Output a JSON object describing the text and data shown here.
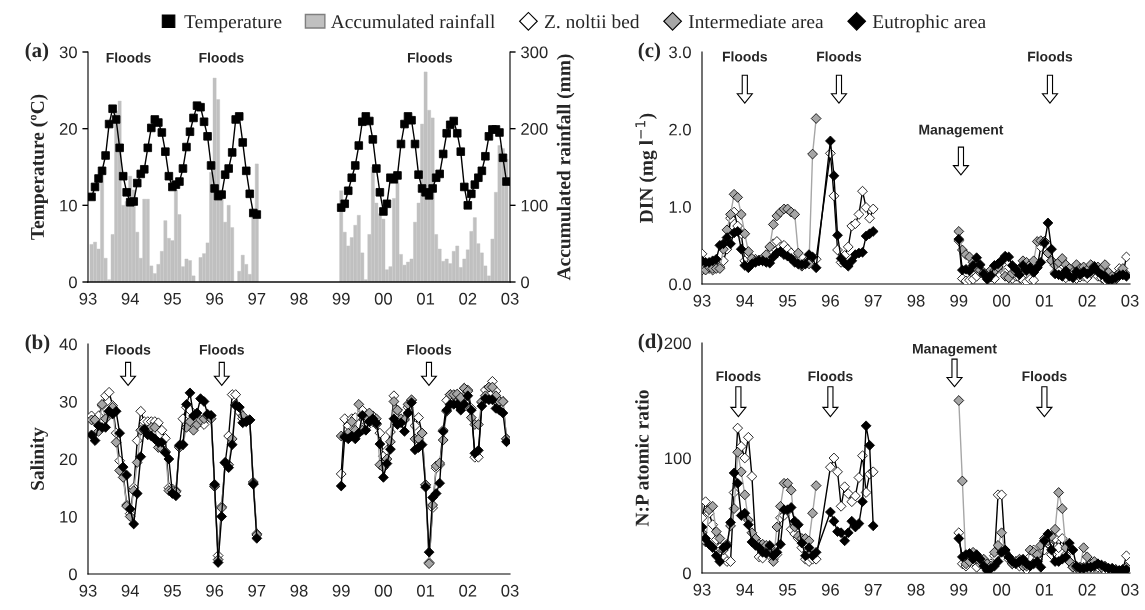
{
  "chart_data": [
    {
      "type": "line",
      "title": "(a)",
      "ylabel": "Temperature (ºC)",
      "y2label": "Accumulated rainfall (mm)",
      "legend": "top",
      "xlim": [
        "1993-01",
        "2003-01"
      ],
      "ylim": [
        0,
        30
      ],
      "y2lim": [
        0,
        300
      ],
      "xticks": [
        {
          "value": "1993-01",
          "label": "93"
        },
        {
          "value": "1994-01",
          "label": "94"
        },
        {
          "value": "1995-01",
          "label": "95"
        },
        {
          "value": "1996-01",
          "label": "96"
        },
        {
          "value": "1997-01",
          "label": "97"
        },
        {
          "value": "1998-01",
          "label": "98"
        },
        {
          "value": "1999-01",
          "label": "99"
        },
        {
          "value": "2000-01",
          "label": "00"
        },
        {
          "value": "2001-01",
          "label": "01"
        },
        {
          "value": "2002-01",
          "label": "02"
        },
        {
          "value": "2003-01",
          "label": "03"
        }
      ],
      "yticks": [
        0,
        10,
        20,
        30
      ],
      "y2ticks": [
        0,
        100,
        200,
        300
      ],
      "x": [
        "1993-02",
        "1993-03",
        "1993-04",
        "1993-05",
        "1993-06",
        "1993-07",
        "1993-08",
        "1993-09",
        "1993-10",
        "1993-11",
        "1993-12",
        "1994-01",
        "1994-02",
        "1994-03",
        "1994-04",
        "1994-05",
        "1994-06",
        "1994-07",
        "1994-08",
        "1994-09",
        "1994-10",
        "1994-11",
        "1994-12",
        "1995-01",
        "1995-02",
        "1995-03",
        "1995-04",
        "1995-05",
        "1995-06",
        "1995-07",
        "1995-08",
        "1995-09",
        "1995-10",
        "1995-11",
        "1995-12",
        "1996-01",
        "1996-02",
        "1996-03",
        "1996-04",
        "1996-05",
        "1996-06",
        "1996-07",
        "1996-08",
        "1996-09",
        "1996-10",
        "1996-11",
        "1996-12",
        "1997-01",
        "1998-01",
        "1999-01",
        "1999-02",
        "1999-03",
        "1999-04",
        "1999-05",
        "1999-06",
        "1999-07",
        "1999-08",
        "1999-09",
        "1999-10",
        "1999-11",
        "1999-12",
        "2000-01",
        "2000-02",
        "2000-03",
        "2000-04",
        "2000-05",
        "2000-06",
        "2000-07",
        "2000-08",
        "2000-09",
        "2000-10",
        "2000-11",
        "2000-12",
        "2001-01",
        "2001-02",
        "2001-03",
        "2001-04",
        "2001-05",
        "2001-06",
        "2001-07",
        "2001-08",
        "2001-09",
        "2001-10",
        "2001-11",
        "2001-12",
        "2002-01",
        "2002-02",
        "2002-03",
        "2002-04",
        "2002-05",
        "2002-06",
        "2002-07",
        "2002-08",
        "2002-09",
        "2002-10",
        "2002-11",
        "2002-12"
      ],
      "annotations": [
        "Floods",
        "Floods",
        "Floods"
      ],
      "series": [
        {
          "name": "Accumulated rainfall",
          "type": "bar",
          "axis": "y2",
          "color": "#c0c0c0",
          "values": [
            49,
            52,
            43,
            141,
            31,
            3,
            62,
            223,
            236,
            100,
            105,
            138,
            120,
            65,
            31,
            108,
            108,
            21,
            11,
            23,
            40,
            80,
            57,
            54,
            120,
            88,
            20,
            30,
            28,
            8,
            0,
            32,
            37,
            51,
            143,
            266,
            238,
            120,
            78,
            100,
            71,
            0,
            14,
            35,
            23,
            10,
            84,
            154,
            null,
            119,
            65,
            47,
            58,
            74,
            87,
            38,
            3,
            62,
            150,
            103,
            89,
            82,
            16,
            20,
            109,
            129,
            36,
            22,
            26,
            30,
            78,
            103,
            206,
            274,
            224,
            214,
            62,
            43,
            27,
            30,
            24,
            40,
            47,
            19,
            30,
            42,
            66,
            84,
            50,
            38,
            21,
            8,
            56,
            117,
            178,
            174,
            160
          ]
        },
        {
          "name": "Temperature",
          "marker": "square",
          "color": "#000000",
          "values": [
            11.1,
            12.4,
            13.5,
            14.5,
            16.5,
            20.6,
            22.6,
            21.2,
            17.5,
            13.8,
            11.7,
            10.4,
            10.5,
            12.9,
            14.1,
            14.7,
            17.5,
            20.1,
            21.2,
            20.8,
            19.5,
            17.0,
            13.8,
            12.4,
            12.7,
            13.1,
            14.8,
            17.6,
            19.6,
            21.4,
            23.0,
            22.8,
            20.9,
            19.0,
            15.2,
            12.2,
            11.2,
            11.4,
            14.0,
            14.8,
            16.9,
            21.2,
            21.6,
            18.2,
            14.5,
            11.5,
            9.0,
            8.8,
            null,
            9.7,
            10.2,
            11.9,
            13.6,
            15.2,
            17.8,
            20.9,
            21.6,
            21.0,
            18.6,
            14.8,
            11.7,
            9.2,
            10.2,
            13.6,
            13.4,
            13.9,
            18.0,
            20.6,
            21.6,
            21.1,
            18.0,
            14.0,
            12.2,
            11.7,
            11.3,
            12.2,
            13.6,
            14.1,
            16.7,
            19.4,
            20.5,
            21.0,
            19.4,
            17.0,
            12.4,
            10.0,
            11.5,
            12.7,
            13.6,
            14.5,
            16.4,
            19.0,
            19.9,
            19.9,
            19.5,
            16.2,
            13.1
          ]
        }
      ]
    },
    {
      "type": "line",
      "title": "(b)",
      "ylabel": "Salinity",
      "legend": "top",
      "xlim": [
        "1993-01",
        "2003-01"
      ],
      "ylim": [
        0,
        40
      ],
      "xticks": [
        {
          "value": "1993-01",
          "label": "93"
        },
        {
          "value": "1994-01",
          "label": "94"
        },
        {
          "value": "1995-01",
          "label": "95"
        },
        {
          "value": "1996-01",
          "label": "96"
        },
        {
          "value": "1997-01",
          "label": "97"
        },
        {
          "value": "1998-01",
          "label": "98"
        },
        {
          "value": "1999-01",
          "label": "99"
        },
        {
          "value": "2000-01",
          "label": "00"
        },
        {
          "value": "2001-01",
          "label": "01"
        },
        {
          "value": "2002-01",
          "label": "02"
        },
        {
          "value": "2003-01",
          "label": "03"
        }
      ],
      "yticks": [
        0,
        10,
        20,
        30,
        40
      ],
      "x": [
        "1993-02",
        "1993-03",
        "1993-04",
        "1993-05",
        "1993-06",
        "1993-07",
        "1993-08",
        "1993-09",
        "1993-10",
        "1993-11",
        "1993-12",
        "1994-01",
        "1994-02",
        "1994-03",
        "1994-04",
        "1994-05",
        "1994-06",
        "1994-07",
        "1994-08",
        "1994-09",
        "1994-10",
        "1994-11",
        "1994-12",
        "1995-01",
        "1995-02",
        "1995-03",
        "1995-04",
        "1995-05",
        "1995-06",
        "1995-07",
        "1995-08",
        "1995-09",
        "1995-10",
        "1995-11",
        "1995-12",
        "1996-01",
        "1996-02",
        "1996-03",
        "1996-04",
        "1996-05",
        "1996-06",
        "1996-07",
        "1996-08",
        "1996-09",
        "1996-10",
        "1996-11",
        "1996-12",
        "1997-01",
        "1998-01",
        "1999-01",
        "1999-02",
        "1999-03",
        "1999-04",
        "1999-05",
        "1999-06",
        "1999-07",
        "1999-08",
        "1999-09",
        "1999-10",
        "1999-11",
        "1999-12",
        "2000-01",
        "2000-02",
        "2000-03",
        "2000-04",
        "2000-05",
        "2000-06",
        "2000-07",
        "2000-08",
        "2000-09",
        "2000-10",
        "2000-11",
        "2000-12",
        "2001-01",
        "2001-02",
        "2001-03",
        "2001-04",
        "2001-05",
        "2001-06",
        "2001-07",
        "2001-08",
        "2001-09",
        "2001-10",
        "2001-11",
        "2001-12",
        "2002-01",
        "2002-02",
        "2002-03",
        "2002-04",
        "2002-05",
        "2002-06",
        "2002-07",
        "2002-08",
        "2002-09",
        "2002-10",
        "2002-11",
        "2002-12"
      ],
      "annotations": [
        "Floods",
        "Floods",
        "Floods"
      ],
      "series": [
        {
          "name": "Z. noltii bed",
          "marker": "diamond",
          "color": "#ffffff",
          "values": [
            27.5,
            26.5,
            27.5,
            29.3,
            31.0,
            31.6,
            29.3,
            24.5,
            19.7,
            17.5,
            12.0,
            10.5,
            15.0,
            23.2,
            28.3,
            26.5,
            26.5,
            26.5,
            26.5,
            26.3,
            25.0,
            23.6,
            15.0,
            14.8,
            14.5,
            22.2,
            27.0,
            29.0,
            28.5,
            27.0,
            26.5,
            26.5,
            26.0,
            27.2,
            27.5,
            15.2,
            3.2,
            11.7,
            19.3,
            24.0,
            31.2,
            31.2,
            28.2,
            27.0,
            26.8,
            26.8,
            16.0,
            7.0,
            null,
            17.4,
            27.0,
            25.8,
            27.0,
            27.2,
            26.0,
            28.5,
            25.5,
            26.5,
            27.5,
            26.0,
            24.5,
            20.5,
            21.5,
            24.7,
            31.0,
            28.5,
            26.5,
            27.0,
            29.0,
            30.2,
            25.8,
            27.2,
            24.5,
            15.5,
            2.0,
            11.5,
            18.4,
            19.0,
            25.0,
            30.2,
            31.2,
            31.0,
            31.2,
            30.5,
            32.3,
            32.0,
            28.8,
            20.3,
            20.3,
            29.8,
            32.0,
            32.5,
            33.5,
            31.8,
            30.0,
            30.0,
            23.5
          ]
        },
        {
          "name": "Intermediate area",
          "marker": "diamond",
          "color": "#a6a6a6",
          "values": [
            26.8,
            26.8,
            24.8,
            29.5,
            27.0,
            28.3,
            29.0,
            22.9,
            18.0,
            16.8,
            11.8,
            10.0,
            14.5,
            19.4,
            25.0,
            25.0,
            25.0,
            25.5,
            25.5,
            22.0,
            21.8,
            21.3,
            14.5,
            14.5,
            14.3,
            22.0,
            22.5,
            25.5,
            26.5,
            25.0,
            26.0,
            26.8,
            27.0,
            27.5,
            27.0,
            15.3,
            2.5,
            11.5,
            19.4,
            19.0,
            23.5,
            29.5,
            29.0,
            27.5,
            26.5,
            26.8,
            15.8,
            6.8,
            null,
            24.0,
            24.0,
            24.5,
            26.5,
            25.0,
            29.5,
            25.0,
            27.5,
            28.0,
            26.5,
            27.0,
            19.0,
            18.5,
            20.0,
            23.0,
            30.0,
            28.5,
            27.0,
            26.8,
            29.5,
            30.3,
            23.5,
            23.5,
            24.5,
            15.5,
            1.8,
            12.0,
            18.8,
            19.3,
            23.3,
            28.3,
            31.2,
            31.2,
            31.3,
            30.7,
            32.3,
            31.8,
            27.2,
            26.0,
            26.0,
            30.0,
            31.0,
            32.5,
            32.5,
            31.0,
            30.0,
            30.0,
            23.5
          ]
        },
        {
          "name": "Eutrophic area",
          "marker": "diamond",
          "color": "#000000",
          "values": [
            24.2,
            23.2,
            25.8,
            25.5,
            25.5,
            28.3,
            27.8,
            28.3,
            24.5,
            18.6,
            17.2,
            11.3,
            8.7,
            14.0,
            20.4,
            25.2,
            24.2,
            24.0,
            23.5,
            22.9,
            22.9,
            21.1,
            20.0,
            14.0,
            13.6,
            22.4,
            22.5,
            29.5,
            31.5,
            27.5,
            28.0,
            30.5,
            30.0,
            27.8,
            27.6,
            15.6,
            2.0,
            10.0,
            19.4,
            18.5,
            22.5,
            29.3,
            29.0,
            26.3,
            26.5,
            26.8,
            15.6,
            6.2,
            null,
            15.3,
            23.8,
            23.5,
            24.0,
            23.5,
            24.5,
            27.6,
            25.0,
            26.5,
            27.0,
            26.2,
            22.6,
            16.8,
            19.2,
            21.7,
            27.0,
            26.0,
            26.3,
            24.8,
            28.0,
            29.8,
            21.6,
            22.0,
            22.5,
            15.1,
            3.8,
            13.3,
            14.0,
            15.8,
            24.8,
            28.5,
            29.5,
            29.5,
            29.5,
            28.5,
            29.5,
            31.0,
            28.5,
            21.0,
            21.5,
            29.2,
            30.5,
            30.3,
            30.3,
            28.8,
            28.5,
            28.0,
            23.0
          ]
        }
      ]
    },
    {
      "type": "line",
      "title": "(c)",
      "ylabel": "DIN (mg l$^{−1}$)",
      "legend": "top",
      "xlim": [
        "1993-01",
        "2003-01"
      ],
      "ylim": [
        0,
        3
      ],
      "xticks": [
        {
          "value": "1993-01",
          "label": "93"
        },
        {
          "value": "1994-01",
          "label": "94"
        },
        {
          "value": "1995-01",
          "label": "95"
        },
        {
          "value": "1996-01",
          "label": "96"
        },
        {
          "value": "1997-01",
          "label": "97"
        },
        {
          "value": "1998-01",
          "label": "98"
        },
        {
          "value": "1999-01",
          "label": "99"
        },
        {
          "value": "2000-01",
          "label": "00"
        },
        {
          "value": "2001-01",
          "label": "01"
        },
        {
          "value": "2002-01",
          "label": "02"
        },
        {
          "value": "2003-01",
          "label": "03"
        }
      ],
      "yticks": [
        {
          "value": 0,
          "label": "0.0"
        },
        {
          "value": 1,
          "label": "1.0"
        },
        {
          "value": 2,
          "label": "2.0"
        },
        {
          "value": 3,
          "label": "3.0"
        }
      ],
      "x": [
        "1993-01",
        "1993-02",
        "1993-03",
        "1993-04",
        "1993-05",
        "1993-06",
        "1993-07",
        "1993-08",
        "1993-09",
        "1993-10",
        "1993-11",
        "1993-12",
        "1994-01",
        "1994-02",
        "1994-03",
        "1994-04",
        "1994-05",
        "1994-06",
        "1994-07",
        "1994-08",
        "1994-09",
        "1994-10",
        "1994-11",
        "1994-12",
        "1995-01",
        "1995-02",
        "1995-03",
        "1995-04",
        "1995-05",
        "1995-06",
        "1995-07",
        "1995-08",
        "1995-09",
        "1996-01",
        "1996-02",
        "1996-03",
        "1996-04",
        "1996-05",
        "1996-06",
        "1996-07",
        "1996-08",
        "1996-09",
        "1996-10",
        "1996-11",
        "1996-12",
        "1997-01",
        "1998-01",
        "1999-01",
        "1999-02",
        "1999-03",
        "1999-04",
        "1999-05",
        "1999-06",
        "1999-07",
        "1999-08",
        "1999-09",
        "1999-10",
        "1999-11",
        "1999-12",
        "2000-01",
        "2000-02",
        "2000-03",
        "2000-04",
        "2000-05",
        "2000-06",
        "2000-07",
        "2000-08",
        "2000-09",
        "2000-10",
        "2000-11",
        "2000-12",
        "2001-01",
        "2001-02",
        "2001-03",
        "2001-04",
        "2001-05",
        "2001-06",
        "2001-07",
        "2001-08",
        "2001-09",
        "2001-10",
        "2001-11",
        "2001-12",
        "2002-01",
        "2002-02",
        "2002-03",
        "2002-04",
        "2002-05",
        "2002-06",
        "2002-07",
        "2002-08",
        "2002-09",
        "2002-10",
        "2002-11",
        "2002-12"
      ],
      "annotations": [
        "Floods",
        "Floods",
        "Management",
        "Floods"
      ],
      "series": [
        {
          "name": "Z. noltii bed",
          "marker": "diamond",
          "color": "#ffffff",
          "values": [
            0.39,
            0.25,
            0.2,
            0.18,
            0.22,
            0.22,
            0.3,
            0.45,
            0.85,
            0.93,
            0.75,
            0.65,
            0.3,
            0.24,
            0.3,
            0.32,
            0.3,
            0.3,
            0.3,
            0.4,
            0.52,
            0.55,
            0.48,
            0.5,
            0.45,
            0.4,
            0.3,
            0.26,
            0.25,
            0.26,
            0.3,
            0.3,
            0.32,
            1.69,
            1.14,
            0.44,
            0.28,
            0.37,
            0.48,
            0.75,
            0.78,
            0.9,
            1.2,
            0.99,
            0.85,
            0.97,
            null,
            0.56,
            0.07,
            0.04,
            0.05,
            0.06,
            0.1,
            0.15,
            0.12,
            0.08,
            0.09,
            0.07,
            0.2,
            0.25,
            0.14,
            0.08,
            0.07,
            0.1,
            0.08,
            0.05,
            0.03,
            0.06,
            0.05,
            0.22,
            0.48,
            0.55,
            0.4,
            0.3,
            0.15,
            0.2,
            0.25,
            0.08,
            0.12,
            0.1,
            0.07,
            0.09,
            0.1,
            0.08,
            0.14,
            0.2,
            0.1,
            0.08,
            0.05,
            0.04,
            0.06,
            0.1,
            0.2,
            0.12,
            0.35
          ]
        },
        {
          "name": "Intermediate area",
          "marker": "diamond",
          "color": "#a6a6a6",
          "values": [
            0.18,
            0.18,
            0.22,
            0.2,
            0.2,
            0.2,
            0.45,
            0.7,
            0.9,
            1.16,
            1.12,
            0.9,
            0.65,
            0.42,
            0.33,
            0.3,
            0.31,
            0.33,
            0.38,
            0.48,
            0.77,
            0.88,
            0.93,
            0.97,
            0.97,
            0.93,
            0.9,
            0.4,
            0.23,
            0.28,
            0.26,
            1.68,
            2.14,
            null,
            null,
            null,
            null,
            null,
            null,
            null,
            null,
            null,
            null,
            null,
            null,
            null,
            null,
            0.68,
            0.44,
            0.38,
            0.35,
            0.28,
            0.2,
            0.18,
            0.15,
            0.1,
            0.18,
            0.17,
            0.22,
            0.3,
            0.1,
            0.08,
            0.14,
            0.16,
            0.2,
            0.3,
            0.28,
            0.25,
            0.3,
            0.55,
            0.56,
            0.55,
            0.4,
            0.3,
            0.24,
            0.28,
            0.33,
            0.25,
            0.2,
            0.15,
            0.25,
            0.2,
            0.22,
            0.18,
            0.25,
            0.23,
            0.22,
            0.2,
            0.25,
            0.15,
            0.1,
            0.06,
            0.14,
            0.2,
            0.12
          ]
        },
        {
          "name": "Eutrophic area",
          "marker": "diamond",
          "color": "#000000",
          "values": [
            0.3,
            0.28,
            0.28,
            0.3,
            0.32,
            0.5,
            0.52,
            0.6,
            0.52,
            0.66,
            0.68,
            0.45,
            0.24,
            0.21,
            0.26,
            0.28,
            0.3,
            0.3,
            0.28,
            0.27,
            0.35,
            0.4,
            0.42,
            0.38,
            0.36,
            0.33,
            0.28,
            0.26,
            0.25,
            0.26,
            0.38,
            0.35,
            0.21,
            1.85,
            1.4,
            0.63,
            0.33,
            0.27,
            0.23,
            0.3,
            0.38,
            0.4,
            0.41,
            0.62,
            0.65,
            0.68,
            null,
            0.58,
            0.18,
            0.19,
            0.17,
            0.24,
            0.34,
            0.25,
            0.13,
            0.06,
            0.11,
            0.24,
            0.26,
            0.3,
            0.36,
            0.35,
            0.24,
            0.19,
            0.12,
            0.24,
            0.17,
            0.21,
            0.15,
            0.21,
            0.28,
            0.53,
            0.79,
            0.45,
            0.13,
            0.12,
            0.1,
            0.17,
            0.1,
            0.08,
            0.16,
            0.12,
            0.16,
            0.13,
            0.16,
            0.22,
            0.16,
            0.12,
            0.1,
            0.05,
            0.06,
            0.08,
            0.11,
            0.12,
            0.1
          ]
        }
      ]
    },
    {
      "type": "line",
      "title": "(d)",
      "ylabel": "N:P atomic ratio",
      "legend": "top",
      "xlim": [
        "1993-01",
        "2003-01"
      ],
      "ylim": [
        0,
        200
      ],
      "xticks": [
        {
          "value": "1993-01",
          "label": "93"
        },
        {
          "value": "1994-01",
          "label": "94"
        },
        {
          "value": "1995-01",
          "label": "95"
        },
        {
          "value": "1996-01",
          "label": "96"
        },
        {
          "value": "1997-01",
          "label": "97"
        },
        {
          "value": "1998-01",
          "label": "98"
        },
        {
          "value": "1999-01",
          "label": "99"
        },
        {
          "value": "2000-01",
          "label": "00"
        },
        {
          "value": "2001-01",
          "label": "01"
        },
        {
          "value": "2002-01",
          "label": "02"
        },
        {
          "value": "2003-01",
          "label": "03"
        }
      ],
      "yticks": [
        0,
        100,
        200
      ],
      "x": [
        "1993-01",
        "1993-02",
        "1993-03",
        "1993-04",
        "1993-05",
        "1993-06",
        "1993-07",
        "1993-08",
        "1993-09",
        "1993-10",
        "1993-11",
        "1993-12",
        "1994-01",
        "1994-02",
        "1994-03",
        "1994-04",
        "1994-05",
        "1994-06",
        "1994-07",
        "1994-08",
        "1994-09",
        "1994-10",
        "1994-11",
        "1994-12",
        "1995-01",
        "1995-02",
        "1995-03",
        "1995-04",
        "1995-05",
        "1995-06",
        "1995-07",
        "1995-08",
        "1995-09",
        "1996-01",
        "1996-02",
        "1996-03",
        "1996-04",
        "1996-05",
        "1996-06",
        "1996-07",
        "1996-08",
        "1996-09",
        "1996-10",
        "1996-11",
        "1996-12",
        "1997-01",
        "1998-01",
        "1999-01",
        "1999-02",
        "1999-03",
        "1999-04",
        "1999-05",
        "1999-06",
        "1999-07",
        "1999-08",
        "1999-09",
        "1999-10",
        "1999-11",
        "1999-12",
        "2000-01",
        "2000-02",
        "2000-03",
        "2000-04",
        "2000-05",
        "2000-06",
        "2000-07",
        "2000-08",
        "2000-09",
        "2000-10",
        "2000-11",
        "2000-12",
        "2001-01",
        "2001-02",
        "2001-03",
        "2001-04",
        "2001-05",
        "2001-06",
        "2001-07",
        "2001-08",
        "2001-09",
        "2001-10",
        "2001-11",
        "2001-12",
        "2002-01",
        "2002-02",
        "2002-03",
        "2002-04",
        "2002-05",
        "2002-06",
        "2002-07",
        "2002-08",
        "2002-09",
        "2002-10",
        "2002-11",
        "2002-12"
      ],
      "annotations": [
        "Management",
        "Floods",
        "Floods",
        "Floods"
      ],
      "series": [
        {
          "name": "Z. noltii bed",
          "marker": "diamond",
          "color": "#ffffff",
          "values": [
            48,
            62,
            52,
            42,
            29,
            22,
            14,
            10,
            10,
            70,
            126,
            110,
            100,
            118,
            84,
            30,
            14,
            13,
            20,
            22,
            12,
            16,
            48,
            50,
            54,
            38,
            34,
            30,
            22,
            12,
            10,
            12,
            12,
            92,
            100,
            88,
            58,
            75,
            69,
            62,
            67,
            83,
            102,
            70,
            86,
            88,
            null,
            35,
            8,
            6,
            14,
            10,
            5,
            8,
            10,
            5,
            8,
            15,
            68,
            68,
            20,
            12,
            8,
            10,
            6,
            10,
            3,
            14,
            20,
            12,
            18,
            20,
            26,
            16,
            30,
            22,
            30,
            16,
            10,
            5,
            5,
            5,
            5,
            6,
            10,
            5,
            5,
            5,
            2,
            2,
            3,
            3,
            2,
            3,
            15
          ]
        },
        {
          "name": "Intermediate area",
          "marker": "diamond",
          "color": "#a6a6a6",
          "values": [
            35,
            27,
            55,
            58,
            36,
            30,
            20,
            25,
            41,
            56,
            105,
            88,
            68,
            46,
            35,
            30,
            25,
            25,
            24,
            22,
            10,
            40,
            58,
            78,
            78,
            72,
            40,
            32,
            30,
            30,
            28,
            52,
            76,
            null,
            null,
            null,
            null,
            null,
            null,
            null,
            null,
            null,
            null,
            null,
            null,
            null,
            null,
            150,
            80,
            8,
            10,
            18,
            12,
            10,
            12,
            8,
            6,
            18,
            24,
            35,
            18,
            14,
            8,
            10,
            12,
            6,
            6,
            20,
            18,
            16,
            24,
            30,
            28,
            32,
            38,
            70,
            56,
            22,
            10,
            5,
            5,
            5,
            22,
            14,
            8,
            10,
            8,
            5,
            6,
            4,
            4,
            3,
            2,
            3,
            5
          ]
        },
        {
          "name": "Eutrophic area",
          "marker": "diamond",
          "color": "#000000",
          "values": [
            40,
            30,
            25,
            22,
            15,
            10,
            22,
            24,
            44,
            87,
            78,
            50,
            52,
            42,
            27,
            24,
            22,
            18,
            17,
            24,
            15,
            18,
            25,
            55,
            55,
            57,
            45,
            42,
            26,
            15,
            22,
            15,
            18,
            53,
            45,
            36,
            35,
            28,
            35,
            45,
            40,
            43,
            62,
            128,
            111,
            41,
            null,
            30,
            14,
            16,
            17,
            12,
            16,
            12,
            6,
            2,
            4,
            6,
            10,
            18,
            20,
            14,
            10,
            8,
            10,
            12,
            8,
            6,
            8,
            10,
            5,
            28,
            34,
            20,
            10,
            10,
            12,
            14,
            26,
            20,
            6,
            4,
            4,
            5,
            5,
            6,
            8,
            7,
            5,
            4,
            4,
            2,
            2,
            3,
            3
          ]
        }
      ]
    }
  ]
}
